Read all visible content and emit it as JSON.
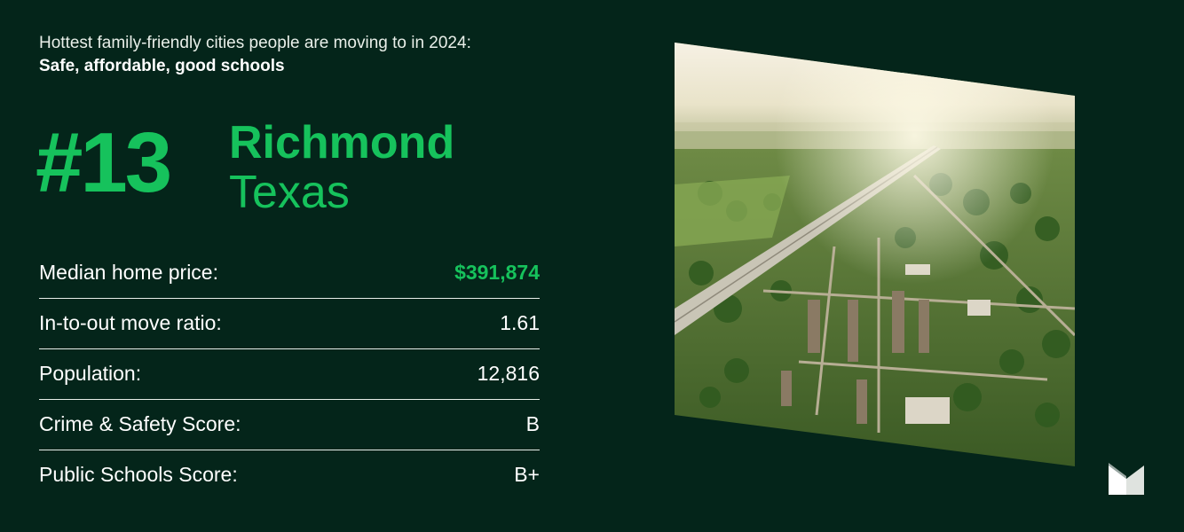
{
  "header": {
    "subtitle": "Hottest family-friendly cities people are moving to in 2024:",
    "tagline": "Safe, affordable, good schools"
  },
  "ranking": {
    "rank": "#13",
    "city": "Richmond",
    "state": "Texas"
  },
  "stats": [
    {
      "label": "Median home price:",
      "value": "$391,874",
      "highlight": true
    },
    {
      "label": "In-to-out move ratio:",
      "value": "1.61",
      "highlight": false
    },
    {
      "label": "Population:",
      "value": "12,816",
      "highlight": false
    },
    {
      "label": "Crime & Safety Score:",
      "value": "B",
      "highlight": false
    },
    {
      "label": "Public Schools Score:",
      "value": "B+",
      "highlight": false
    }
  ],
  "colors": {
    "background": "#04251a",
    "accent": "#16c25c",
    "text": "#ffffff"
  },
  "photo": {
    "subject": "aerial-view-of-suburban-town-with-highway"
  },
  "logo": {
    "icon": "brand-logo-icon"
  }
}
